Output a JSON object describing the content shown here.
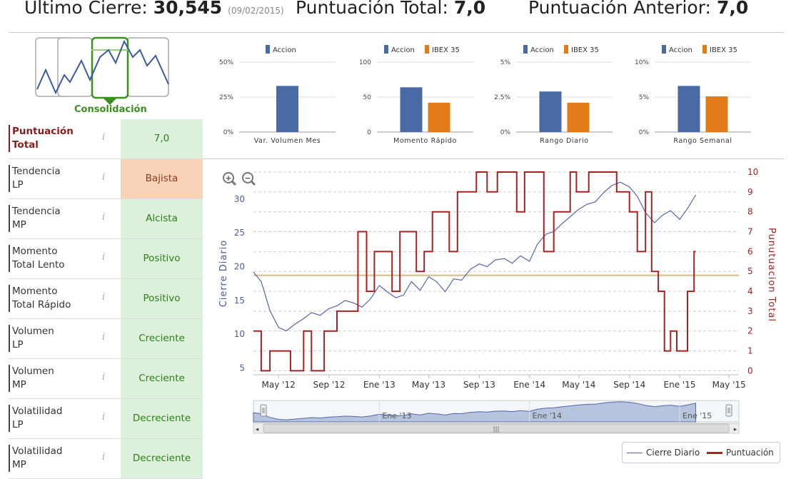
{
  "header": {
    "last_close_label": "Último Cierre:",
    "last_close_value": "30,545",
    "last_close_date": "(09/02/2015)",
    "total_score_label": "Puntuación Total:",
    "total_score_value": "7,0",
    "prev_score_label": "Puntuación Anterior:",
    "prev_score_value": "7,0"
  },
  "trend_widget": {
    "label": "Consolidación"
  },
  "score_rows": [
    {
      "label_l1": "Puntuación",
      "label_l2": "Total",
      "info": "i",
      "value": "7,0",
      "status": "positive"
    },
    {
      "label_l1": "Tendencia",
      "label_l2": "LP",
      "info": "i",
      "value": "Bajista",
      "status": "negative"
    },
    {
      "label_l1": "Tendencia",
      "label_l2": "MP",
      "info": "i",
      "value": "Alcista",
      "status": "positive"
    },
    {
      "label_l1": "Momento",
      "label_l2": "Total Lento",
      "info": "i",
      "value": "Positivo",
      "status": "positive"
    },
    {
      "label_l1": "Momento",
      "label_l2": "Total Rápido",
      "info": "i",
      "value": "Positivo",
      "status": "positive"
    },
    {
      "label_l1": "Volumen",
      "label_l2": "LP",
      "info": "i",
      "value": "Creciente",
      "status": "positive"
    },
    {
      "label_l1": "Volumen",
      "label_l2": "MP",
      "info": "i",
      "value": "Creciente",
      "status": "positive"
    },
    {
      "label_l1": "Volatilidad",
      "label_l2": "LP",
      "info": "i",
      "value": "Decreciente",
      "status": "positive"
    },
    {
      "label_l1": "Volatilidad",
      "label_l2": "MP",
      "info": "i",
      "value": "Decreciente",
      "status": "positive"
    }
  ],
  "colors": {
    "accion": "#4a6aa5",
    "ibex": "#e07b17",
    "price_line": "#5566aa",
    "score_line": "#a32222",
    "positive_bg": "#dcf0dc",
    "negative_bg": "#f8d3b8",
    "accent_green": "#3b8f1e"
  },
  "chart_data": [
    {
      "type": "bar",
      "title": "",
      "legend": [
        "Accion"
      ],
      "categories": [
        "Var. Volumen Mes"
      ],
      "series": [
        {
          "name": "Accion",
          "values": [
            33
          ]
        }
      ],
      "yticks": [
        "50%",
        "25%",
        "0%"
      ],
      "ylim": [
        0,
        50
      ]
    },
    {
      "type": "bar",
      "title": "",
      "legend": [
        "Accion",
        "IBEX 35"
      ],
      "categories": [
        "Momento Rápido"
      ],
      "series": [
        {
          "name": "Accion",
          "values": [
            64
          ]
        },
        {
          "name": "IBEX 35",
          "values": [
            42
          ]
        }
      ],
      "yticks": [
        "100",
        "50",
        "0"
      ],
      "ylim": [
        0,
        100
      ]
    },
    {
      "type": "bar",
      "title": "",
      "legend": [
        "Accion",
        "IBEX 35"
      ],
      "categories": [
        "Rango Diario"
      ],
      "series": [
        {
          "name": "Accion",
          "values": [
            2.9
          ]
        },
        {
          "name": "IBEX 35",
          "values": [
            2.1
          ]
        }
      ],
      "yticks": [
        "5%",
        "2.5%",
        "0%"
      ],
      "ylim": [
        0,
        5
      ]
    },
    {
      "type": "bar",
      "title": "",
      "legend": [
        "Accion",
        "IBEX 35"
      ],
      "categories": [
        "Rango Semanal"
      ],
      "series": [
        {
          "name": "Accion",
          "values": [
            6.6
          ]
        },
        {
          "name": "IBEX 35",
          "values": [
            5.1
          ]
        }
      ],
      "yticks": [
        "10%",
        "5%",
        "0%"
      ],
      "ylim": [
        0,
        10
      ]
    },
    {
      "type": "line",
      "title": "",
      "ylabel": "Cierre Diario",
      "y2label": "Punutuacion Total",
      "ylim": [
        4,
        34
      ],
      "y2lim": [
        -0.2,
        10
      ],
      "yticks": [
        5,
        10,
        15,
        20,
        25,
        30
      ],
      "y2ticks": [
        0,
        1,
        2,
        3,
        4,
        5,
        6,
        7,
        8,
        9,
        10
      ],
      "xticks": [
        "May '12",
        "Sep '12",
        "Ene '13",
        "May '13",
        "Sep '13",
        "Ene '14",
        "May '14",
        "Sep '14",
        "Ene '15",
        "May '15"
      ],
      "navigator_ticks": [
        "Ene '13",
        "Ene '14",
        "Ene '15"
      ],
      "reference_line_y2": 4.8,
      "series": [
        {
          "name": "Cierre Diario",
          "x": [
            "2012-03-01",
            "2012-03-20",
            "2012-04-10",
            "2012-05-01",
            "2012-05-20",
            "2012-06-10",
            "2012-07-01",
            "2012-07-20",
            "2012-08-10",
            "2012-09-01",
            "2012-09-20",
            "2012-10-10",
            "2012-11-01",
            "2012-11-20",
            "2012-12-10",
            "2013-01-01",
            "2013-01-20",
            "2013-02-10",
            "2013-03-01",
            "2013-03-20",
            "2013-04-10",
            "2013-05-01",
            "2013-05-20",
            "2013-06-10",
            "2013-07-01",
            "2013-07-20",
            "2013-08-10",
            "2013-09-01",
            "2013-09-20",
            "2013-10-10",
            "2013-11-01",
            "2013-11-20",
            "2013-12-10",
            "2014-01-01",
            "2014-01-20",
            "2014-02-10",
            "2014-03-01",
            "2014-03-20",
            "2014-04-10",
            "2014-05-01",
            "2014-05-20",
            "2014-06-10",
            "2014-07-01",
            "2014-07-20",
            "2014-08-10",
            "2014-09-01",
            "2014-09-20",
            "2014-10-10",
            "2014-11-01",
            "2014-11-20",
            "2014-12-10",
            "2015-01-01",
            "2015-01-20",
            "2015-02-09"
          ],
          "values": [
            19.2,
            17.8,
            13.5,
            11,
            10.5,
            11.5,
            12.3,
            13.2,
            12.8,
            13.8,
            14.2,
            15,
            14.6,
            14,
            15.2,
            17.2,
            16.3,
            15.4,
            15.8,
            17.8,
            16.5,
            18.5,
            17.8,
            16.3,
            18.2,
            18,
            19.6,
            20.4,
            20,
            21,
            21.2,
            20.5,
            21.6,
            20.8,
            23.3,
            24.8,
            25.2,
            26.3,
            27.4,
            28.5,
            29.2,
            29.6,
            31,
            32,
            32.5,
            31.8,
            30.4,
            28,
            26.5,
            27.6,
            28.3,
            27,
            28.6,
            30.6
          ]
        },
        {
          "name": "Puntuación",
          "step": true,
          "x": [
            "2012-03-01",
            "2012-03-20",
            "2012-04-10",
            "2012-05-10",
            "2012-05-30",
            "2012-07-01",
            "2012-07-20",
            "2012-08-20",
            "2012-09-20",
            "2012-10-15",
            "2012-11-10",
            "2012-12-01",
            "2012-12-20",
            "2013-01-10",
            "2013-02-01",
            "2013-02-20",
            "2013-03-10",
            "2013-04-01",
            "2013-04-20",
            "2013-05-10",
            "2013-06-01",
            "2013-06-20",
            "2013-07-10",
            "2013-08-01",
            "2013-08-25",
            "2013-09-20",
            "2013-10-15",
            "2013-11-10",
            "2013-12-01",
            "2013-12-20",
            "2014-01-15",
            "2014-02-05",
            "2014-03-01",
            "2014-03-20",
            "2014-04-10",
            "2014-04-25",
            "2014-05-10",
            "2014-05-25",
            "2014-06-10",
            "2014-07-01",
            "2014-08-01",
            "2014-09-01",
            "2014-09-20",
            "2014-10-10",
            "2014-10-25",
            "2014-11-10",
            "2014-11-25",
            "2014-12-10",
            "2014-12-25",
            "2015-01-05",
            "2015-01-20",
            "2015-02-05"
          ],
          "values": [
            2,
            0,
            1,
            1,
            0,
            2,
            0,
            2,
            3,
            3,
            7,
            4,
            6,
            6,
            4,
            7,
            7,
            5,
            6,
            8,
            8,
            6,
            9,
            9,
            10,
            9,
            10,
            10,
            8,
            10,
            10,
            6,
            8,
            8,
            10,
            9,
            9,
            10,
            10,
            10,
            9,
            8,
            6,
            9,
            5,
            4,
            1,
            2,
            1,
            1,
            4,
            6
          ]
        }
      ]
    }
  ],
  "legend": {
    "series_a": "Cierre Diario",
    "series_b": "Puntuación"
  }
}
